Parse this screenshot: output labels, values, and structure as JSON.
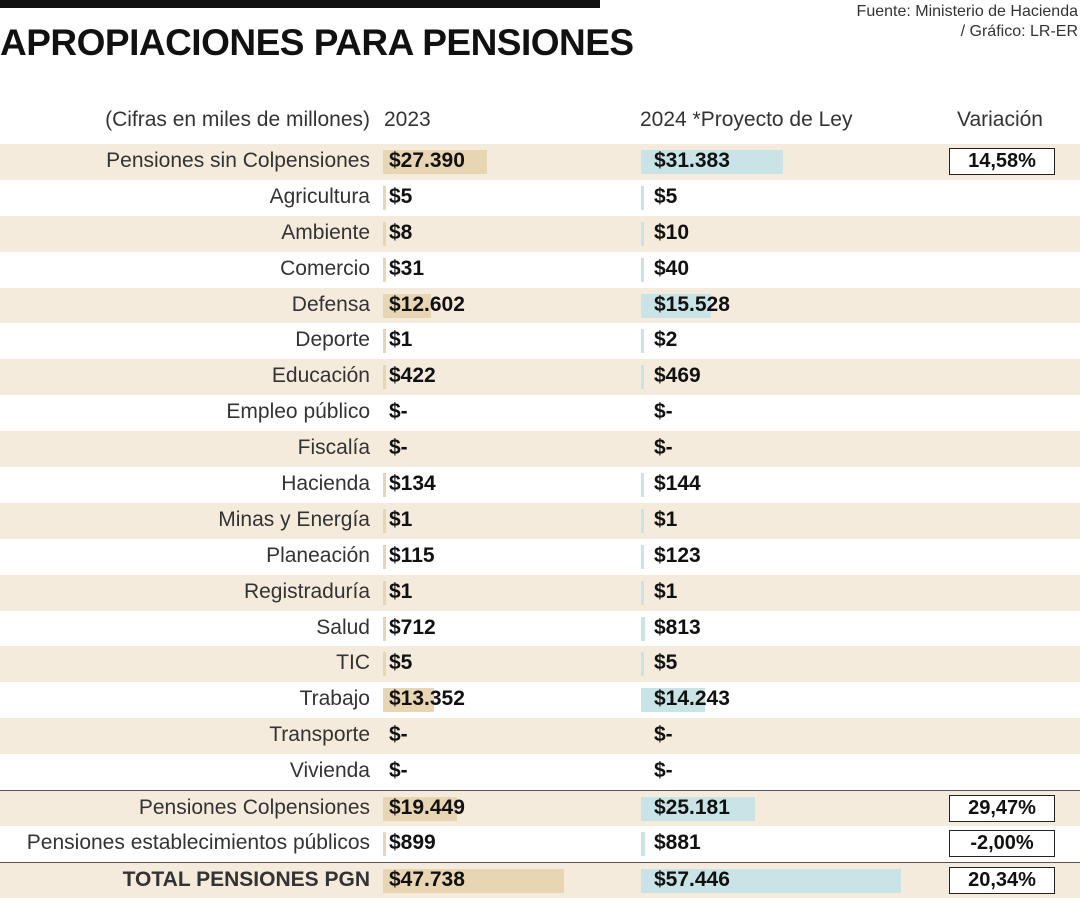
{
  "title": "APROPIACIONES PARA PENSIONES",
  "source_line1": "Fuente: Ministerio de Hacienda",
  "source_line2": "/ Gráfico: LR-ER",
  "header": {
    "unit": "(Cifras en miles de millones)",
    "col2023": "2023",
    "col2024": "2024 *Proyecto de Ley",
    "variation": "Variación"
  },
  "colors": {
    "bar2023": "#e8d6b3",
    "bar2024": "#c9e4e6",
    "shade": "#f4ebdd"
  },
  "chart_data": {
    "type": "bar",
    "title": "APROPIACIONES PARA PENSIONES",
    "unit": "miles de millones",
    "series_names": [
      "2023",
      "2024 *Proyecto de Ley"
    ],
    "max_value": 57446,
    "rows": [
      {
        "label": "Pensiones sin Colpensiones",
        "d2023": "$27.390",
        "d2024": "$31.383",
        "v2023": 27390,
        "v2024": 31383,
        "variation": "14,58%"
      },
      {
        "label": "Agricultura",
        "d2023": "$5",
        "d2024": "$5",
        "v2023": 5,
        "v2024": 5
      },
      {
        "label": "Ambiente",
        "d2023": "$8",
        "d2024": "$10",
        "v2023": 8,
        "v2024": 10
      },
      {
        "label": "Comercio",
        "d2023": "$31",
        "d2024": "$40",
        "v2023": 31,
        "v2024": 40
      },
      {
        "label": "Defensa",
        "d2023": "$12.602",
        "d2024": "$15.528",
        "v2023": 12602,
        "v2024": 15528
      },
      {
        "label": "Deporte",
        "d2023": "$1",
        "d2024": "$2",
        "v2023": 1,
        "v2024": 2
      },
      {
        "label": "Educación",
        "d2023": "$422",
        "d2024": "$469",
        "v2023": 422,
        "v2024": 469
      },
      {
        "label": "Empleo público",
        "d2023": "$-",
        "d2024": "$-",
        "v2023": 0,
        "v2024": 0
      },
      {
        "label": "Fiscalía",
        "d2023": "$-",
        "d2024": "$-",
        "v2023": 0,
        "v2024": 0
      },
      {
        "label": "Hacienda",
        "d2023": "$134",
        "d2024": "$144",
        "v2023": 134,
        "v2024": 144
      },
      {
        "label": "Minas y Energía",
        "d2023": "$1",
        "d2024": "$1",
        "v2023": 1,
        "v2024": 1
      },
      {
        "label": "Planeación",
        "d2023": "$115",
        "d2024": "$123",
        "v2023": 115,
        "v2024": 123
      },
      {
        "label": "Registraduría",
        "d2023": "$1",
        "d2024": "$1",
        "v2023": 1,
        "v2024": 1
      },
      {
        "label": "Salud",
        "d2023": "$712",
        "d2024": "$813",
        "v2023": 712,
        "v2024": 813
      },
      {
        "label": "TIC",
        "d2023": "$5",
        "d2024": "$5",
        "v2023": 5,
        "v2024": 5
      },
      {
        "label": "Trabajo",
        "d2023": "$13.352",
        "d2024": "$14.243",
        "v2023": 13352,
        "v2024": 14243
      },
      {
        "label": "Transporte",
        "d2023": "$-",
        "d2024": "$-",
        "v2023": 0,
        "v2024": 0
      },
      {
        "label": "Vivienda",
        "d2023": "$-",
        "d2024": "$-",
        "v2023": 0,
        "v2024": 0
      },
      {
        "label": "Pensiones Colpensiones",
        "d2023": "$19.449",
        "d2024": "$25.181",
        "v2023": 19449,
        "v2024": 25181,
        "variation": "29,47%",
        "separator": true
      },
      {
        "label": "Pensiones establecimientos públicos",
        "d2023": "$899",
        "d2024": "$881",
        "v2023": 899,
        "v2024": 881,
        "variation": "-2,00%"
      },
      {
        "label": "TOTAL PENSIONES PGN",
        "d2023": "$47.738",
        "d2024": "$57.446",
        "v2023": 47738,
        "v2024": 57446,
        "variation": "20,34%",
        "separator": true,
        "total": true
      }
    ]
  }
}
